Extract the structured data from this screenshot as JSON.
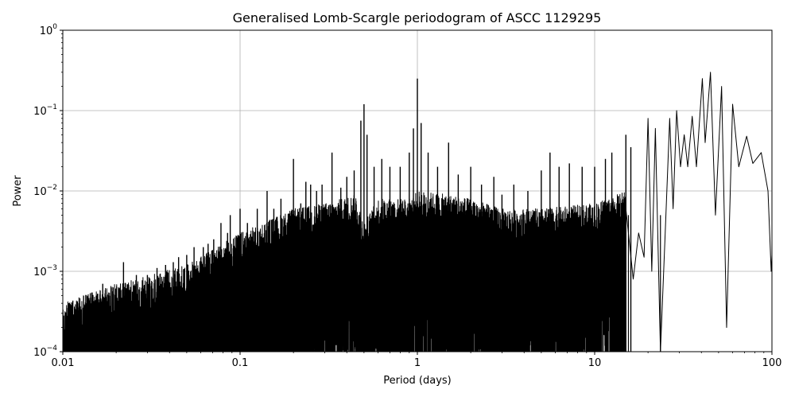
{
  "chart_data": {
    "type": "line",
    "title": "Generalised Lomb-Scargle periodogram of ASCC 1129295",
    "xlabel": "Period (days)",
    "ylabel": "Power",
    "x_scale": "log",
    "y_scale": "log",
    "xlim": [
      0.01,
      100
    ],
    "ylim": [
      0.0001,
      1
    ],
    "grid": true,
    "line_color": "#000000",
    "x_ticks": [
      {
        "value": 0.01,
        "label": "0.01"
      },
      {
        "value": 0.1,
        "label": "0.1"
      },
      {
        "value": 1,
        "label": "1"
      },
      {
        "value": 10,
        "label": "10"
      },
      {
        "value": 100,
        "label": "100"
      }
    ],
    "y_ticks": [
      {
        "value": 0.0001,
        "base": "10",
        "exp": "−4"
      },
      {
        "value": 0.001,
        "base": "10",
        "exp": "−3"
      },
      {
        "value": 0.01,
        "base": "10",
        "exp": "−2"
      },
      {
        "value": 0.1,
        "base": "10",
        "exp": "−1"
      },
      {
        "value": 1,
        "base": "10",
        "exp": "0"
      }
    ],
    "envelope": [
      [
        0.01,
        0.0004
      ],
      [
        0.02,
        0.0007
      ],
      [
        0.05,
        0.0012
      ],
      [
        0.1,
        0.003
      ],
      [
        0.2,
        0.006
      ],
      [
        0.3,
        0.007
      ],
      [
        0.45,
        0.009
      ],
      [
        0.5,
        0.004
      ],
      [
        0.6,
        0.008
      ],
      [
        0.9,
        0.008
      ],
      [
        1.0,
        0.01
      ],
      [
        1.5,
        0.009
      ],
      [
        2.0,
        0.008
      ],
      [
        3.0,
        0.006
      ],
      [
        5.0,
        0.006
      ],
      [
        10.0,
        0.007
      ],
      [
        15.0,
        0.01
      ],
      [
        20.0,
        0.01
      ]
    ],
    "peaks": [
      {
        "x": 0.0108,
        "y": 0.0004
      },
      {
        "x": 0.0123,
        "y": 0.0004
      },
      {
        "x": 0.0135,
        "y": 0.0004
      },
      {
        "x": 0.0155,
        "y": 0.0005
      },
      {
        "x": 0.0168,
        "y": 0.0007
      },
      {
        "x": 0.0182,
        "y": 0.0005
      },
      {
        "x": 0.022,
        "y": 0.0013
      },
      {
        "x": 0.026,
        "y": 0.0009
      },
      {
        "x": 0.03,
        "y": 0.0009
      },
      {
        "x": 0.034,
        "y": 0.0011
      },
      {
        "x": 0.038,
        "y": 0.0012
      },
      {
        "x": 0.042,
        "y": 0.0013
      },
      {
        "x": 0.045,
        "y": 0.0015
      },
      {
        "x": 0.05,
        "y": 0.0016
      },
      {
        "x": 0.055,
        "y": 0.002
      },
      {
        "x": 0.062,
        "y": 0.002
      },
      {
        "x": 0.066,
        "y": 0.0022
      },
      {
        "x": 0.071,
        "y": 0.0025
      },
      {
        "x": 0.078,
        "y": 0.004
      },
      {
        "x": 0.085,
        "y": 0.003
      },
      {
        "x": 0.088,
        "y": 0.005
      },
      {
        "x": 0.1,
        "y": 0.006
      },
      {
        "x": 0.11,
        "y": 0.004
      },
      {
        "x": 0.125,
        "y": 0.006
      },
      {
        "x": 0.142,
        "y": 0.01
      },
      {
        "x": 0.155,
        "y": 0.006
      },
      {
        "x": 0.17,
        "y": 0.008
      },
      {
        "x": 0.2,
        "y": 0.025
      },
      {
        "x": 0.22,
        "y": 0.007
      },
      {
        "x": 0.235,
        "y": 0.013
      },
      {
        "x": 0.25,
        "y": 0.012
      },
      {
        "x": 0.27,
        "y": 0.01
      },
      {
        "x": 0.29,
        "y": 0.012
      },
      {
        "x": 0.33,
        "y": 0.03
      },
      {
        "x": 0.37,
        "y": 0.011
      },
      {
        "x": 0.4,
        "y": 0.015
      },
      {
        "x": 0.44,
        "y": 0.018
      },
      {
        "x": 0.48,
        "y": 0.075
      },
      {
        "x": 0.5,
        "y": 0.12
      },
      {
        "x": 0.52,
        "y": 0.05
      },
      {
        "x": 0.57,
        "y": 0.02
      },
      {
        "x": 0.63,
        "y": 0.025
      },
      {
        "x": 0.7,
        "y": 0.02
      },
      {
        "x": 0.8,
        "y": 0.02
      },
      {
        "x": 0.9,
        "y": 0.03
      },
      {
        "x": 0.95,
        "y": 0.06
      },
      {
        "x": 1.0,
        "y": 0.25
      },
      {
        "x": 1.05,
        "y": 0.07
      },
      {
        "x": 1.15,
        "y": 0.03
      },
      {
        "x": 1.3,
        "y": 0.02
      },
      {
        "x": 1.5,
        "y": 0.04
      },
      {
        "x": 1.7,
        "y": 0.016
      },
      {
        "x": 2.0,
        "y": 0.02
      },
      {
        "x": 2.3,
        "y": 0.012
      },
      {
        "x": 2.7,
        "y": 0.015
      },
      {
        "x": 3.0,
        "y": 0.009
      },
      {
        "x": 3.5,
        "y": 0.012
      },
      {
        "x": 4.2,
        "y": 0.01
      },
      {
        "x": 5.0,
        "y": 0.018
      },
      {
        "x": 5.6,
        "y": 0.03
      },
      {
        "x": 6.3,
        "y": 0.02
      },
      {
        "x": 7.2,
        "y": 0.022
      },
      {
        "x": 8.5,
        "y": 0.02
      },
      {
        "x": 10.0,
        "y": 0.02
      },
      {
        "x": 11.5,
        "y": 0.025
      },
      {
        "x": 12.5,
        "y": 0.03
      },
      {
        "x": 15.0,
        "y": 0.05
      },
      {
        "x": 16.0,
        "y": 0.035
      }
    ],
    "deep_dips": [
      {
        "x": 0.52,
        "y": 0.0001
      },
      {
        "x": 0.87,
        "y": 0.0001
      },
      {
        "x": 1.02,
        "y": 0.0001
      },
      {
        "x": 1.45,
        "y": 0.0001
      },
      {
        "x": 2.6,
        "y": 0.0001
      },
      {
        "x": 4.5,
        "y": 0.0001
      },
      {
        "x": 5.5,
        "y": 0.0001
      },
      {
        "x": 5.9,
        "y": 0.0001
      },
      {
        "x": 8.1,
        "y": 0.0001
      },
      {
        "x": 15.5,
        "y": 0.0001
      },
      {
        "x": 23.5,
        "y": 0.0001
      }
    ],
    "low_period_curve": [
      [
        15.0,
        0.006
      ],
      [
        16.5,
        0.0008
      ],
      [
        17.7,
        0.003
      ],
      [
        19.0,
        0.0015
      ],
      [
        20.0,
        0.08
      ],
      [
        21.0,
        0.001
      ],
      [
        22.0,
        0.06
      ],
      [
        23.5,
        0.0001
      ],
      [
        25.0,
        0.003
      ],
      [
        26.5,
        0.08
      ],
      [
        27.7,
        0.006
      ],
      [
        29.0,
        0.1
      ],
      [
        30.5,
        0.02
      ],
      [
        32.0,
        0.05
      ],
      [
        33.5,
        0.02
      ],
      [
        35.5,
        0.085
      ],
      [
        37.5,
        0.02
      ],
      [
        40.5,
        0.25
      ],
      [
        42.0,
        0.04
      ],
      [
        45.0,
        0.3
      ],
      [
        48.0,
        0.005
      ],
      [
        52.0,
        0.2
      ],
      [
        55.5,
        0.0002
      ],
      [
        60.0,
        0.12
      ],
      [
        65.0,
        0.02
      ],
      [
        72.0,
        0.048
      ],
      [
        78.0,
        0.022
      ],
      [
        87.0,
        0.03
      ],
      [
        95.0,
        0.01
      ],
      [
        99.0,
        0.001
      ],
      [
        100.0,
        0.0016
      ]
    ]
  }
}
